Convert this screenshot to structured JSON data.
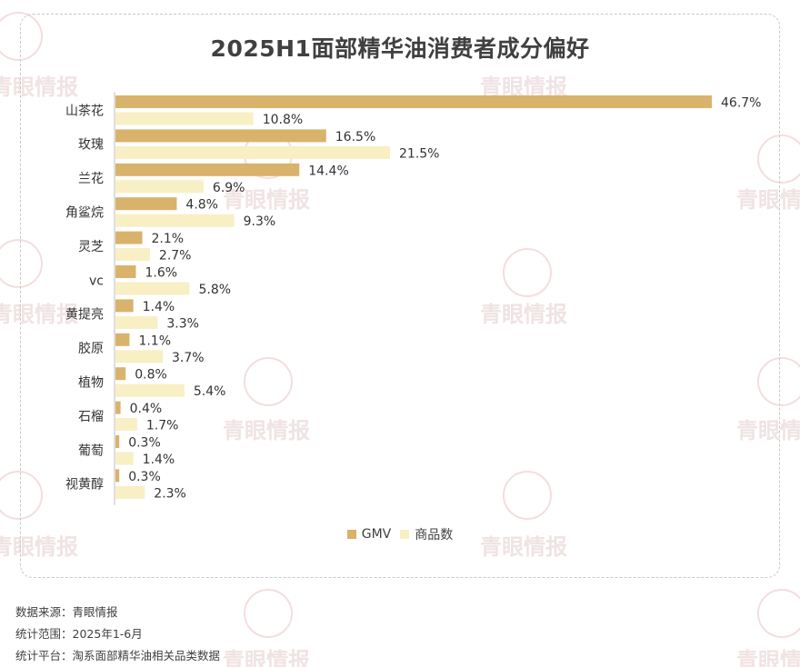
{
  "chart_data": {
    "type": "bar",
    "orientation": "horizontal",
    "title": "2025H1面部精华油消费者成分偏好",
    "categories": [
      "山茶花",
      "玫瑰",
      "兰花",
      "角鲨烷",
      "灵芝",
      "vc",
      "黄提亮",
      "胶原",
      "植物",
      "石榴",
      "葡萄",
      "视黄醇"
    ],
    "series": [
      {
        "name": "GMV",
        "color": "#d9b36c",
        "values": [
          46.7,
          16.5,
          14.4,
          4.8,
          2.1,
          1.6,
          1.4,
          1.1,
          0.8,
          0.4,
          0.3,
          0.3
        ]
      },
      {
        "name": "商品数",
        "color": "#f8efc4",
        "values": [
          10.8,
          21.5,
          6.9,
          9.3,
          2.7,
          5.8,
          3.3,
          3.7,
          5.4,
          1.7,
          1.4,
          2.3
        ]
      }
    ],
    "value_suffix": "%",
    "legend_position": "bottom",
    "grid": false,
    "xlim": [
      0,
      46.7
    ]
  },
  "footer": {
    "source_label": "数据来源：",
    "source_value": "青眼情报",
    "range_label": "统计范围：",
    "range_value": "2025年1-6月",
    "platform_label": "统计平台：",
    "platform_value": "淘系面部精华油相关品类数据"
  },
  "watermark": {
    "text": "青眼情报"
  }
}
